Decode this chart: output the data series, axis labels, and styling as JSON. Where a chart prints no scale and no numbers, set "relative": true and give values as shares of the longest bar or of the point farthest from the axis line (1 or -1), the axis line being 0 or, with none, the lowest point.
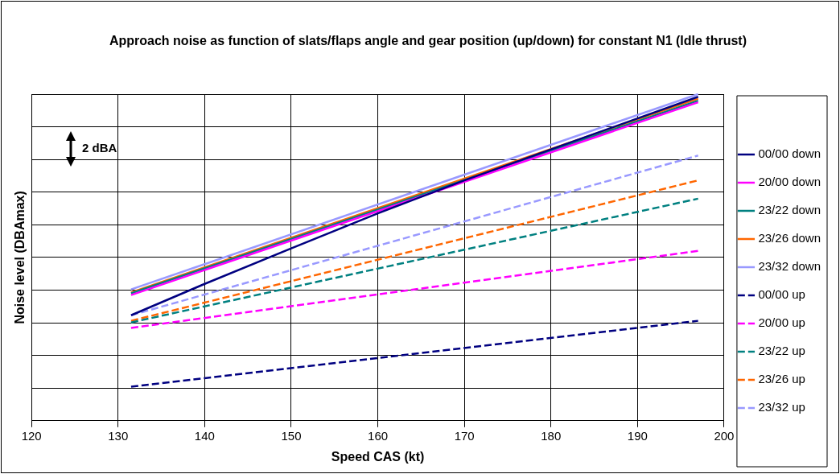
{
  "chart_data": {
    "type": "line",
    "title": "Approach noise as function of slats/flaps angle and gear position (up/down) for constant N1 (Idle thrust)",
    "xlabel": "Speed CAS (kt)",
    "ylabel": "Noise level (DBAmax)",
    "relative": true,
    "xlim": [
      120,
      200
    ],
    "xticks": [
      120,
      130,
      140,
      150,
      160,
      170,
      180,
      190,
      200
    ],
    "grid": true,
    "legend": "right",
    "marker": "none",
    "annotations": [
      "2 dBA"
    ],
    "series": [
      {
        "name": "00/00 down",
        "color": "#000080",
        "line_style": "solid",
        "x": [
          131.5,
          140,
          150,
          160,
          170,
          180,
          197
        ],
        "values": [
          0.323,
          0.419,
          0.528,
          0.635,
          0.736,
          0.831,
          0.992
        ]
      },
      {
        "name": "20/00 down",
        "color": "#ff00ff",
        "line_style": "solid",
        "x": [
          131.5,
          197
        ],
        "values": [
          0.385,
          0.975
        ]
      },
      {
        "name": "23/22 down",
        "color": "#008080",
        "line_style": "solid",
        "x": [
          131.5,
          197
        ],
        "values": [
          0.39,
          0.98
        ]
      },
      {
        "name": "23/26 down",
        "color": "#ff6600",
        "line_style": "solid",
        "x": [
          131.5,
          197
        ],
        "values": [
          0.393,
          0.986
        ]
      },
      {
        "name": "23/32 down",
        "color": "#9999ff",
        "line_style": "solid",
        "x": [
          131.5,
          197
        ],
        "values": [
          0.402,
          1
        ]
      },
      {
        "name": "00/00 up",
        "color": "#000080",
        "line_style": "dashed",
        "x": [
          131.5,
          197
        ],
        "values": [
          0.104,
          0.306
        ]
      },
      {
        "name": "20/00 up",
        "color": "#ff00ff",
        "line_style": "dashed",
        "x": [
          131.5,
          197
        ],
        "values": [
          0.284,
          0.52
        ]
      },
      {
        "name": "23/22 up",
        "color": "#008080",
        "line_style": "dashed",
        "x": [
          131.5,
          197
        ],
        "values": [
          0.301,
          0.68
        ]
      },
      {
        "name": "23/26 up",
        "color": "#ff6600",
        "line_style": "dashed",
        "x": [
          131.5,
          197
        ],
        "values": [
          0.306,
          0.736
        ]
      },
      {
        "name": "23/32 up",
        "color": "#9999ff",
        "line_style": "dashed",
        "x": [
          131.5,
          197
        ],
        "values": [
          0.323,
          0.812
        ]
      }
    ]
  }
}
